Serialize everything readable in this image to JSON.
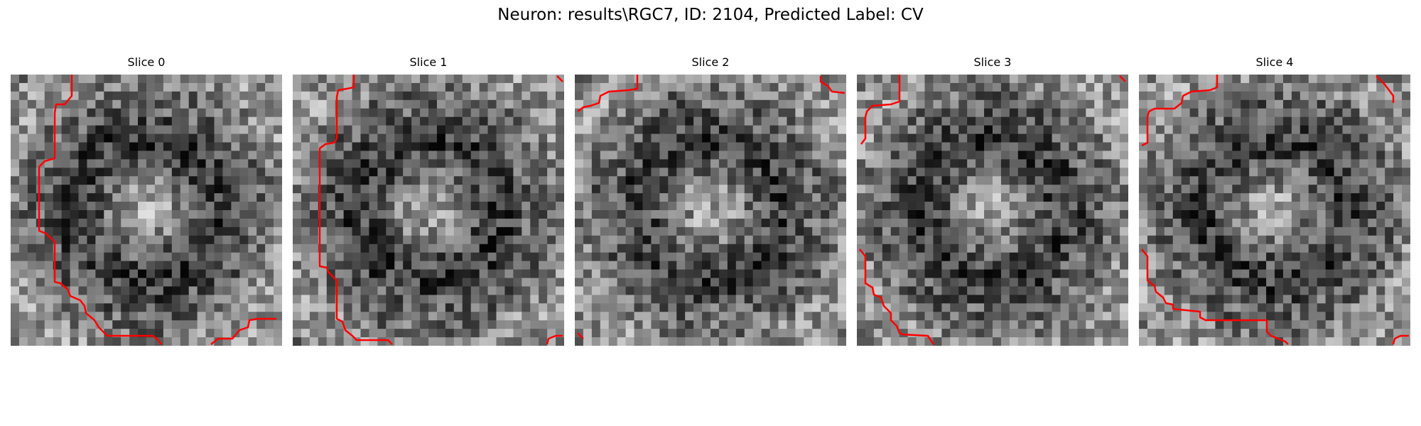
{
  "figure_title": "Neuron: results\\RGC7, ID: 2104, Predicted Label: CV",
  "panels": [
    {
      "title": "Slice 0"
    },
    {
      "title": "Slice 1"
    },
    {
      "title": "Slice 2"
    },
    {
      "title": "Slice 3"
    },
    {
      "title": "Slice 4"
    }
  ],
  "colors": {
    "contour": "#ff0000",
    "background": "#ffffff"
  },
  "image": {
    "grid_cells": 32,
    "colormap": "gray"
  }
}
